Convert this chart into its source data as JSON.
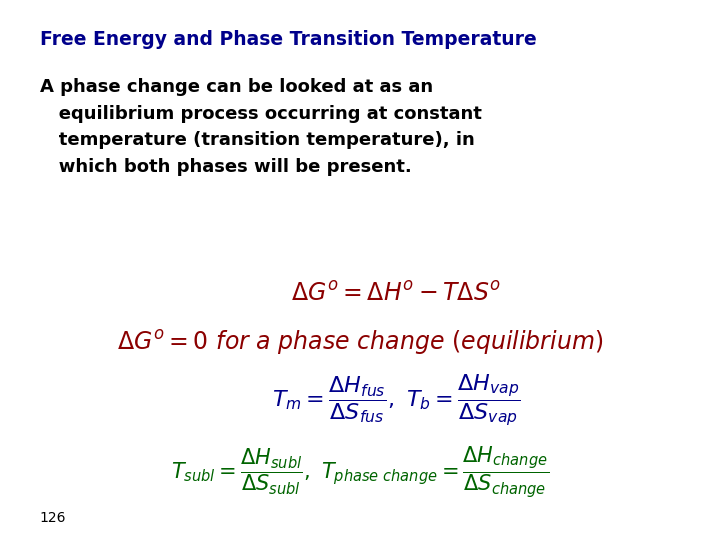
{
  "title": "Free Energy and Phase Transition Temperature",
  "title_color": "#00008B",
  "title_fontsize": 13.5,
  "body_text": "A phase change can be looked at as an\n   equilibrium process occurring at constant\n   temperature (transition temperature), in\n   which both phases will be present.",
  "body_color": "#000000",
  "body_fontsize": 13,
  "eq1": "$\\Delta G^o = \\Delta H^o - T\\Delta S^o$",
  "eq1_color": "#8B0000",
  "eq1_fontsize": 17,
  "eq2": "$\\Delta G^o = 0\\ for\\ a\\ phase\\ change\\ (equilibrium)$",
  "eq2_color": "#8B0000",
  "eq2_fontsize": 17,
  "eq3": "$T_m = \\dfrac{\\Delta H_{fus}}{\\Delta S_{fus}},\\ T_b = \\dfrac{\\Delta H_{vap}}{\\Delta S_{vap}}$",
  "eq3_color": "#00008B",
  "eq3_fontsize": 16,
  "eq4": "$T_{subl} = \\dfrac{\\Delta H_{subl}}{\\Delta S_{subl}},\\ T_{phase\\ change} = \\dfrac{\\Delta H_{change}}{\\Delta S_{change}}$",
  "eq4_color": "#006400",
  "eq4_fontsize": 15,
  "page_number": "126",
  "bg_color": "#FFFFFF"
}
